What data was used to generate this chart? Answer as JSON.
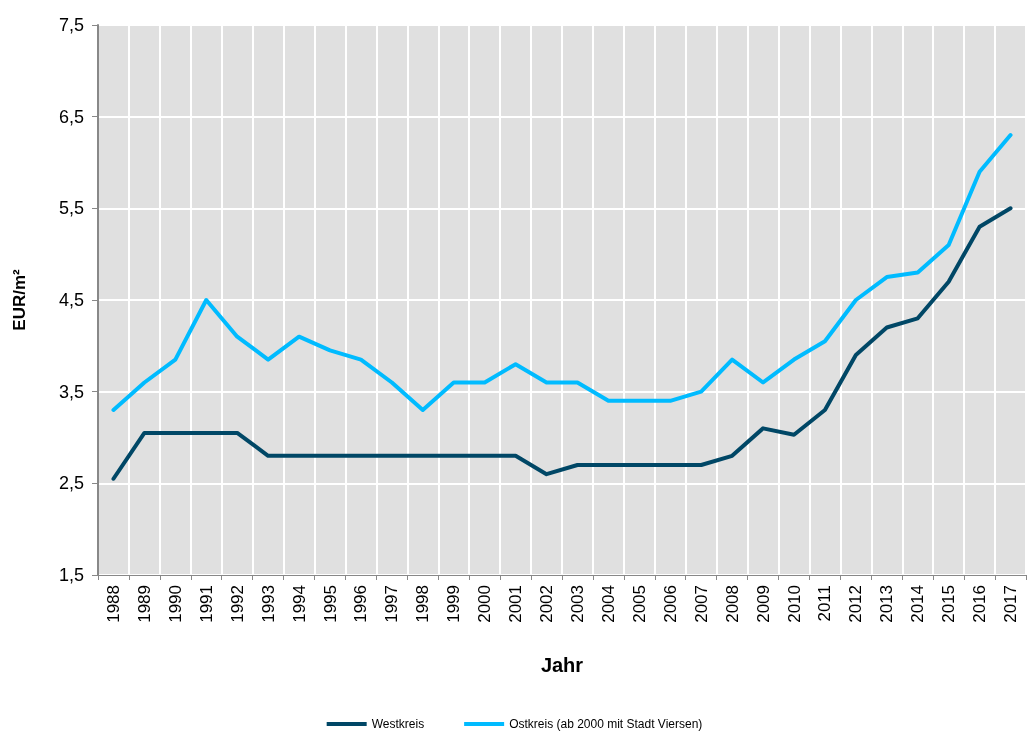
{
  "chart_data": {
    "type": "line",
    "xlabel": "Jahr",
    "ylabel": "EUR/m²",
    "categories": [
      "1988",
      "1989",
      "1990",
      "1991",
      "1992",
      "1993",
      "1994",
      "1995",
      "1996",
      "1997",
      "1998",
      "1999",
      "2000",
      "2001",
      "2002",
      "2003",
      "2004",
      "2005",
      "2006",
      "2007",
      "2008",
      "2009",
      "2010",
      "2011",
      "2012",
      "2013",
      "2014",
      "2015",
      "2016",
      "2017"
    ],
    "series": [
      {
        "name": "Westkreis",
        "color": "#004766",
        "values": [
          2.55,
          3.05,
          3.05,
          3.05,
          3.05,
          2.8,
          2.8,
          2.8,
          2.8,
          2.8,
          2.8,
          2.8,
          2.8,
          2.8,
          2.6,
          2.7,
          2.7,
          2.7,
          2.7,
          2.7,
          2.8,
          3.1,
          3.03,
          3.3,
          3.9,
          4.2,
          4.3,
          4.7,
          5.3,
          5.5
        ]
      },
      {
        "name": "Ostkreis (ab 2000 mit Stadt Viersen)",
        "color": "#00bbff",
        "values": [
          3.3,
          3.6,
          3.85,
          4.5,
          4.1,
          3.85,
          4.1,
          3.95,
          3.85,
          3.6,
          3.3,
          3.6,
          3.6,
          3.8,
          3.6,
          3.6,
          3.4,
          3.4,
          3.4,
          3.5,
          3.85,
          3.6,
          3.85,
          4.05,
          4.5,
          4.75,
          4.8,
          5.1,
          5.9,
          6.3
        ]
      }
    ],
    "ylim": [
      1.5,
      7.5
    ],
    "yticks": [
      {
        "value": 1.5,
        "label": "1,5"
      },
      {
        "value": 2.5,
        "label": "2,5"
      },
      {
        "value": 3.5,
        "label": "3,5"
      },
      {
        "value": 4.5,
        "label": "4,5"
      },
      {
        "value": 5.5,
        "label": "5,5"
      },
      {
        "value": 6.5,
        "label": "6,5"
      },
      {
        "value": 7.5,
        "label": "7,5"
      }
    ],
    "grid": true,
    "legend": "bottom",
    "marker": "none",
    "line_style": "solid"
  }
}
